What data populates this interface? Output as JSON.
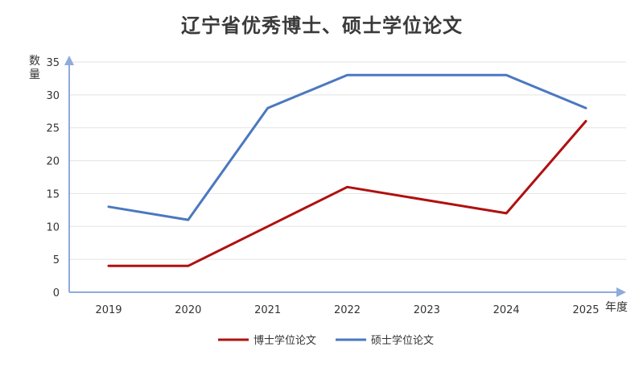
{
  "chart_data": {
    "type": "line",
    "title": "辽宁省优秀博士、硕士学位论文",
    "xlabel": "年度",
    "ylabel": "数量",
    "categories": [
      "2019",
      "2020",
      "2021",
      "2022",
      "2023",
      "2024",
      "2025"
    ],
    "ylim": [
      0,
      35
    ],
    "yticks": [
      0,
      5,
      10,
      15,
      20,
      25,
      30,
      35
    ],
    "grid": true,
    "legend_position": "bottom",
    "series": [
      {
        "name": "博士学位论文",
        "color": "#B01010",
        "values": [
          4,
          4,
          10,
          16,
          14,
          12,
          26
        ]
      },
      {
        "name": "硕士学位论文",
        "color": "#4A78C0",
        "values": [
          13,
          11,
          28,
          33,
          33,
          33,
          28
        ]
      }
    ],
    "axis_color": "#8FAADC",
    "grid_color": "#E3E3E3"
  }
}
